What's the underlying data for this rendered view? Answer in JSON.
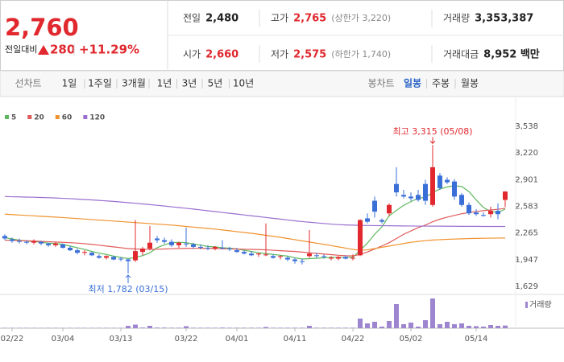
{
  "header": {
    "price": "2,760",
    "change_label": "전일대비",
    "change": "280",
    "rate": "+11.29%",
    "stats": [
      {
        "label": "전일",
        "value": "2,480"
      },
      {
        "label": "고가",
        "value": "2,765",
        "note": "(상한가 3,220)"
      },
      {
        "label": "거래량",
        "value": "3,353,387"
      },
      {
        "label": "시가",
        "value": "2,660"
      },
      {
        "label": "저가",
        "value": "2,575",
        "note": "(하한가 1,740)"
      },
      {
        "label": "거래대금",
        "value": "8,952 백만"
      }
    ]
  },
  "toolbar": {
    "line_label": "선차트",
    "periods": [
      "1일",
      "1주일",
      "3개월",
      "1년",
      "3년",
      "5년",
      "10년"
    ],
    "candle_label": "봉차트",
    "candle_types": [
      "일봉",
      "주봉",
      "월봉"
    ],
    "active": "일봉"
  },
  "chart_data": {
    "type": "candlestick",
    "categories": [
      null,
      "02/22",
      null,
      null,
      null,
      null,
      null,
      null,
      "03/04",
      null,
      null,
      null,
      null,
      null,
      null,
      null,
      "03/13",
      null,
      null,
      null,
      null,
      null,
      null,
      null,
      null,
      "03/22",
      null,
      null,
      null,
      null,
      null,
      null,
      "04/01",
      null,
      null,
      null,
      null,
      null,
      null,
      null,
      "04/11",
      null,
      null,
      null,
      null,
      null,
      null,
      null,
      "04/22",
      null,
      null,
      null,
      null,
      null,
      null,
      null,
      "05/02",
      null,
      null,
      null,
      null,
      null,
      null,
      null,
      null,
      "05/14",
      null,
      null,
      null,
      null
    ],
    "open": [
      2230,
      2190,
      2170,
      2160,
      2150,
      2160,
      2140,
      2120,
      2130,
      2090,
      2060,
      2030,
      2030,
      1990,
      1970,
      1980,
      1960,
      1950,
      1940,
      2040,
      2080,
      2200,
      2180,
      2160,
      2120,
      2140,
      2130,
      2100,
      2090,
      2080,
      2090,
      2080,
      2060,
      2040,
      2020,
      2010,
      2000,
      1990,
      1980,
      1970,
      1950,
      1930,
      1990,
      2000,
      1990,
      1960,
      1960,
      1980,
      1960,
      2000,
      2440,
      2650,
      2420,
      2500,
      2850,
      2720,
      2700,
      2720,
      2850,
      2600,
      2950,
      2900,
      2880,
      2720,
      2600,
      2510,
      2480,
      2490,
      2530,
      2660
    ],
    "high": [
      2250,
      2210,
      2200,
      2180,
      2190,
      2170,
      2150,
      2160,
      2140,
      2110,
      2080,
      2060,
      2040,
      2010,
      2000,
      1990,
      1980,
      1960,
      2420,
      2100,
      2350,
      2230,
      2210,
      2190,
      2160,
      2330,
      2150,
      2130,
      2120,
      2110,
      2180,
      2100,
      2090,
      2060,
      2050,
      2030,
      2380,
      2010,
      2000,
      1990,
      1970,
      1960,
      2300,
      2030,
      2010,
      1990,
      1990,
      2000,
      2010,
      2430,
      2500,
      2700,
      2440,
      2620,
      3050,
      2780,
      2750,
      2780,
      2900,
      3315,
      2980,
      2930,
      2910,
      2740,
      2630,
      2550,
      2510,
      2580,
      2620,
      2765
    ],
    "low": [
      2180,
      2150,
      2140,
      2130,
      2130,
      2120,
      2100,
      2100,
      2080,
      2050,
      2010,
      2000,
      1990,
      1960,
      1950,
      1940,
      1930,
      1782,
      1920,
      2000,
      2060,
      2150,
      2140,
      2100,
      2090,
      2100,
      2080,
      2070,
      2060,
      2060,
      2070,
      2050,
      2030,
      2010,
      1990,
      1980,
      1990,
      1960,
      1950,
      1930,
      1900,
      1890,
      1970,
      1970,
      1960,
      1940,
      1940,
      1950,
      1940,
      1990,
      2380,
      2450,
      2380,
      2470,
      2700,
      2680,
      2650,
      2640,
      2600,
      2580,
      2780,
      2850,
      2660,
      2580,
      2480,
      2470,
      2460,
      2450,
      2430,
      2575
    ],
    "close": [
      2200,
      2170,
      2160,
      2150,
      2170,
      2140,
      2120,
      2140,
      2090,
      2060,
      2030,
      2040,
      2000,
      1970,
      1990,
      1950,
      1950,
      1930,
      2050,
      2080,
      2150,
      2180,
      2160,
      2120,
      2150,
      2130,
      2100,
      2090,
      2080,
      2100,
      2080,
      2070,
      2040,
      2020,
      2000,
      2020,
      2010,
      1970,
      1990,
      1950,
      1930,
      1920,
      2020,
      1990,
      1980,
      1970,
      1980,
      1960,
      1970,
      2420,
      2400,
      2520,
      2400,
      2600,
      2750,
      2700,
      2680,
      2660,
      2650,
      3050,
      2800,
      2870,
      2700,
      2600,
      2500,
      2490,
      2470,
      2530,
      2490,
      2760
    ],
    "volume": [
      500000,
      500000,
      500000,
      500000,
      500000,
      500000,
      500000,
      500000,
      500000,
      500000,
      500000,
      500000,
      500000,
      500000,
      500000,
      500000,
      500000,
      3000000,
      4500000,
      800000,
      3000000,
      800000,
      800000,
      600000,
      600000,
      2500000,
      600000,
      600000,
      600000,
      600000,
      800000,
      600000,
      600000,
      600000,
      600000,
      600000,
      1500000,
      600000,
      600000,
      600000,
      600000,
      600000,
      3000000,
      600000,
      600000,
      600000,
      600000,
      600000,
      600000,
      12000000,
      6000000,
      8000000,
      2000000,
      9000000,
      30000000,
      5000000,
      7000000,
      2000000,
      10000000,
      37000000,
      5000000,
      8000000,
      5000000,
      6000000,
      3000000,
      2500000,
      2000000,
      4000000,
      3000000,
      3353387
    ],
    "up_color": "#e0282e",
    "down_color": "#3a6fd8",
    "volume_color": "#9d86cf",
    "volume_label": "거래량",
    "ylim": [
      1629,
      3538
    ],
    "yticks": [
      {
        "value": 1629,
        "label": "1,629"
      },
      {
        "value": 1947,
        "label": "1,947"
      },
      {
        "value": 2265,
        "label": "2,265"
      },
      {
        "value": 2583,
        "label": "2,583"
      },
      {
        "value": 2901,
        "label": "2,901"
      },
      {
        "value": 3220,
        "label": "3,220"
      },
      {
        "value": 3538,
        "label": "3,538"
      }
    ],
    "vlim": [
      0,
      40000000
    ],
    "series": [
      {
        "name": "5",
        "color": "#5cb85c",
        "values": [
          2210,
          2195,
          2180,
          2170,
          2165,
          2155,
          2145,
          2140,
          2130,
          2110,
          2090,
          2070,
          2045,
          2025,
          2010,
          1990,
          1975,
          1960,
          1975,
          1995,
          2030,
          2090,
          2125,
          2150,
          2155,
          2150,
          2135,
          2120,
          2105,
          2100,
          2090,
          2085,
          2075,
          2060,
          2045,
          2030,
          2020,
          2010,
          2000,
          1990,
          1970,
          1955,
          1960,
          1965,
          1970,
          1975,
          1975,
          1975,
          1975,
          2060,
          2145,
          2250,
          2340,
          2470,
          2535,
          2595,
          2640,
          2680,
          2690,
          2750,
          2790,
          2815,
          2830,
          2820,
          2760,
          2660,
          2570,
          2520,
          2510,
          2550
        ]
      },
      {
        "name": "20",
        "color": "#e05a5a",
        "values": [
          2180,
          2178,
          2175,
          2172,
          2170,
          2166,
          2162,
          2158,
          2154,
          2150,
          2145,
          2138,
          2130,
          2120,
          2110,
          2100,
          2090,
          2080,
          2075,
          2072,
          2070,
          2072,
          2075,
          2078,
          2080,
          2082,
          2083,
          2083,
          2082,
          2080,
          2078,
          2076,
          2074,
          2072,
          2070,
          2068,
          2065,
          2060,
          2055,
          2050,
          2045,
          2038,
          2030,
          2022,
          2015,
          2008,
          2000,
          1995,
          1992,
          2010,
          2040,
          2075,
          2110,
          2150,
          2200,
          2250,
          2290,
          2330,
          2360,
          2400,
          2430,
          2455,
          2475,
          2495,
          2510,
          2522,
          2532,
          2540,
          2548,
          2560
        ]
      },
      {
        "name": "60",
        "color": "#f0922e",
        "values": [
          2490,
          2485,
          2480,
          2475,
          2470,
          2465,
          2460,
          2455,
          2450,
          2444,
          2438,
          2432,
          2426,
          2420,
          2414,
          2408,
          2402,
          2396,
          2390,
          2384,
          2378,
          2372,
          2366,
          2360,
          2352,
          2344,
          2336,
          2328,
          2320,
          2312,
          2302,
          2292,
          2282,
          2272,
          2262,
          2250,
          2238,
          2226,
          2214,
          2200,
          2186,
          2172,
          2158,
          2144,
          2130,
          2115,
          2100,
          2085,
          2070,
          2060,
          2065,
          2080,
          2095,
          2110,
          2125,
          2140,
          2155,
          2165,
          2175,
          2182,
          2186,
          2190,
          2193,
          2196,
          2199,
          2201,
          2203,
          2204,
          2205,
          2206
        ]
      },
      {
        "name": "120",
        "color": "#9b6fd0",
        "values": [
          2700,
          2698,
          2696,
          2694,
          2692,
          2689,
          2686,
          2683,
          2679,
          2675,
          2670,
          2665,
          2660,
          2654,
          2648,
          2642,
          2635,
          2628,
          2620,
          2612,
          2604,
          2596,
          2587,
          2578,
          2569,
          2560,
          2551,
          2541,
          2531,
          2521,
          2511,
          2501,
          2491,
          2481,
          2471,
          2461,
          2451,
          2441,
          2431,
          2421,
          2411,
          2402,
          2394,
          2386,
          2379,
          2372,
          2366,
          2362,
          2359,
          2357,
          2355,
          2354,
          2353,
          2352,
          2351,
          2350,
          2349,
          2348,
          2348,
          2347,
          2347,
          2346,
          2346,
          2345,
          2345,
          2345,
          2344,
          2344,
          2344,
          2344
        ]
      }
    ],
    "annotations": [
      {
        "text": "최고 3,315 (05/08)",
        "color": "#e0282e"
      },
      {
        "text": "최저 1,782 (03/15)",
        "color": "#3a6fd8"
      }
    ]
  }
}
